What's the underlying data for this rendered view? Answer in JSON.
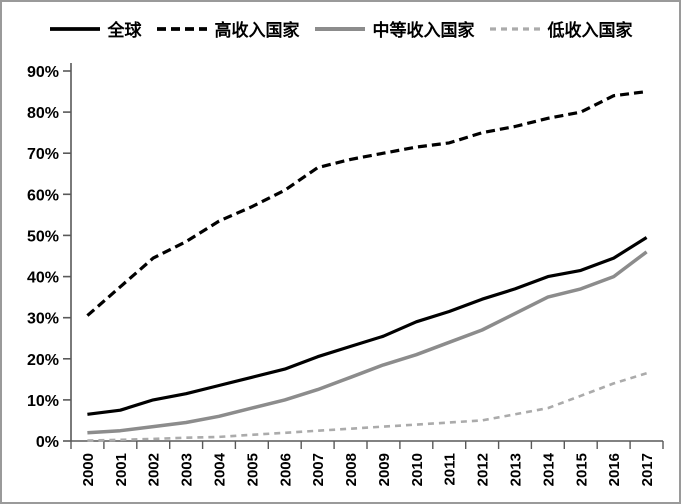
{
  "figure": {
    "background": "#ffffff",
    "border_color": "#9a9a9a",
    "axis_color": "#595959"
  },
  "chart_data": {
    "type": "line",
    "title": "",
    "xlabel": "",
    "ylabel": "",
    "ylim": [
      0,
      90
    ],
    "y_tick_step": 10,
    "y_tick_labels": [
      "0%",
      "10%",
      "20%",
      "30%",
      "40%",
      "50%",
      "60%",
      "70%",
      "80%",
      "90%"
    ],
    "grid": false,
    "legend_position": "top",
    "categories": [
      "2000",
      "2001",
      "2002",
      "2003",
      "2004",
      "2005",
      "2006",
      "2007",
      "2008",
      "2009",
      "2010",
      "2011",
      "2012",
      "2013",
      "2014",
      "2015",
      "2016",
      "2017"
    ],
    "series": [
      {
        "name": "全球",
        "color": "#000000",
        "dash": "solid",
        "width": 3.2,
        "values": [
          6.5,
          7.5,
          10,
          11.5,
          13.5,
          15.5,
          17.5,
          20.5,
          23,
          25.5,
          29,
          31.5,
          34.5,
          37,
          40,
          41.5,
          44.5,
          49.5
        ]
      },
      {
        "name": "高收入国家",
        "color": "#000000",
        "dash": "dashed",
        "dash_pattern": "9 5",
        "width": 3.2,
        "values": [
          30.5,
          37.5,
          44.5,
          48.5,
          53.5,
          57,
          61,
          66.5,
          68.5,
          70,
          71.5,
          72.5,
          75,
          76.5,
          78.5,
          80,
          84,
          85
        ]
      },
      {
        "name": "中等收入国家",
        "color": "#8c8c8c",
        "dash": "solid",
        "width": 3.5,
        "values": [
          2,
          2.5,
          3.5,
          4.5,
          6,
          8,
          10,
          12.5,
          15.5,
          18.5,
          21,
          24,
          27,
          31,
          35,
          37,
          40,
          46
        ]
      },
      {
        "name": "低收入国家",
        "color": "#ababab",
        "dash": "dashed",
        "dash_pattern": "6 5",
        "width": 2.6,
        "values": [
          0.1,
          0.3,
          0.5,
          0.8,
          1,
          1.5,
          2,
          2.5,
          3,
          3.5,
          4,
          4.5,
          5,
          6.5,
          8,
          11,
          14,
          16.5
        ]
      }
    ]
  }
}
